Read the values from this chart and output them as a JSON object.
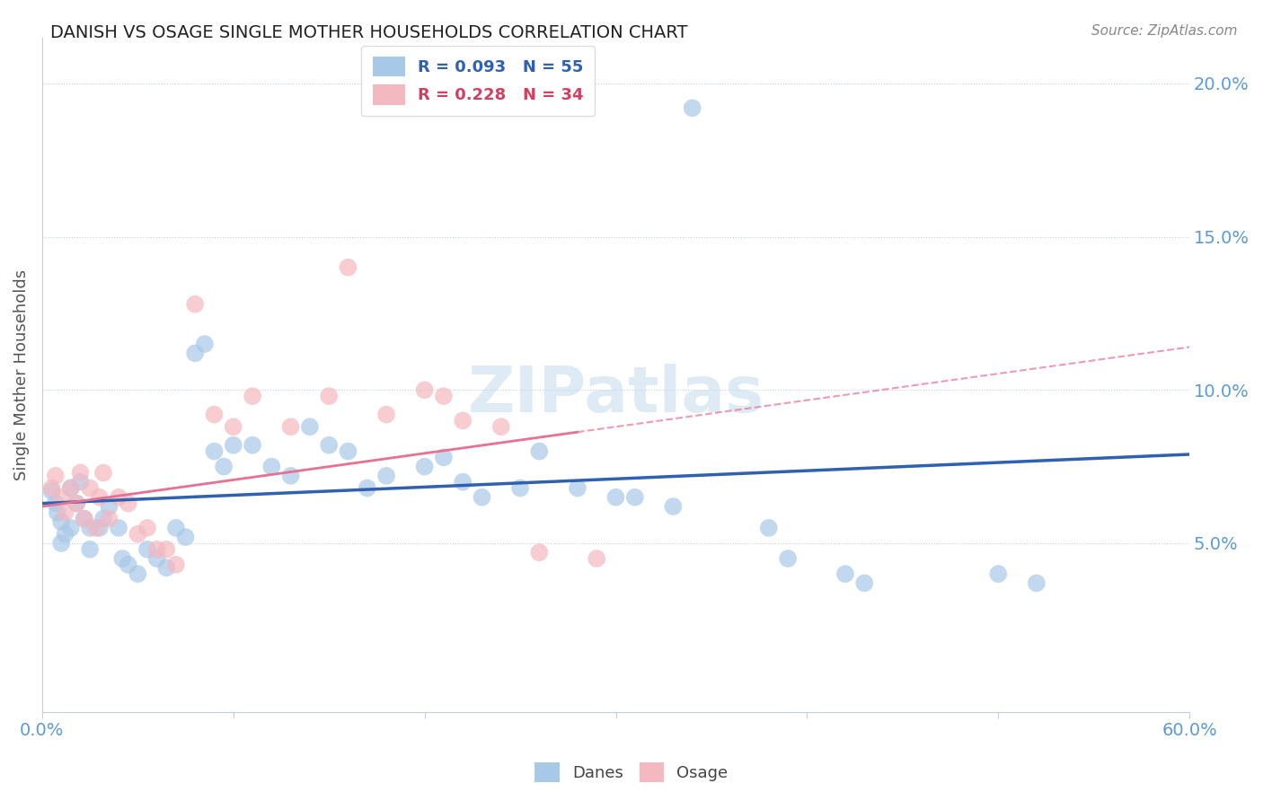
{
  "title": "DANISH VS OSAGE SINGLE MOTHER HOUSEHOLDS CORRELATION CHART",
  "source": "Source: ZipAtlas.com",
  "ylabel": "Single Mother Households",
  "xlim": [
    0.0,
    0.6
  ],
  "ylim": [
    -0.005,
    0.215
  ],
  "ytick_vals": [
    0.05,
    0.1,
    0.15,
    0.2
  ],
  "ytick_labels": [
    "5.0%",
    "10.0%",
    "15.0%",
    "20.0%"
  ],
  "xtick_vals": [
    0.0,
    0.1,
    0.2,
    0.3,
    0.4,
    0.5,
    0.6
  ],
  "xtick_labels": [
    "0.0%",
    "",
    "",
    "",
    "",
    "",
    "60.0%"
  ],
  "danes_R": 0.093,
  "danes_N": 55,
  "osage_R": 0.228,
  "osage_N": 34,
  "danes_color": "#a8c8e8",
  "osage_color": "#f4b8c0",
  "danes_line_color": "#3060b0",
  "osage_line_color": "#e87090",
  "background_color": "#ffffff",
  "watermark": "ZIPatlas",
  "danes_trend_x0": 0.0,
  "danes_trend_y0": 0.063,
  "danes_trend_x1": 0.6,
  "danes_trend_y1": 0.079,
  "osage_trend_x0": 0.0,
  "osage_trend_y0": 0.062,
  "osage_trend_x1": 0.3,
  "osage_trend_y1": 0.088,
  "danes_x": [
    0.005,
    0.007,
    0.008,
    0.01,
    0.01,
    0.012,
    0.015,
    0.015,
    0.018,
    0.02,
    0.022,
    0.025,
    0.025,
    0.03,
    0.032,
    0.035,
    0.04,
    0.042,
    0.045,
    0.05,
    0.055,
    0.06,
    0.065,
    0.07,
    0.075,
    0.08,
    0.085,
    0.09,
    0.095,
    0.1,
    0.11,
    0.12,
    0.13,
    0.14,
    0.15,
    0.16,
    0.17,
    0.18,
    0.2,
    0.21,
    0.22,
    0.23,
    0.25,
    0.26,
    0.28,
    0.3,
    0.31,
    0.33,
    0.38,
    0.39,
    0.42,
    0.43,
    0.5,
    0.52,
    0.34
  ],
  "danes_y": [
    0.067,
    0.063,
    0.06,
    0.057,
    0.05,
    0.053,
    0.068,
    0.055,
    0.063,
    0.07,
    0.058,
    0.055,
    0.048,
    0.055,
    0.058,
    0.062,
    0.055,
    0.045,
    0.043,
    0.04,
    0.048,
    0.045,
    0.042,
    0.055,
    0.052,
    0.112,
    0.115,
    0.08,
    0.075,
    0.082,
    0.082,
    0.075,
    0.072,
    0.088,
    0.082,
    0.08,
    0.068,
    0.072,
    0.075,
    0.078,
    0.07,
    0.065,
    0.068,
    0.08,
    0.068,
    0.065,
    0.065,
    0.062,
    0.055,
    0.045,
    0.04,
    0.037,
    0.04,
    0.037,
    0.192
  ],
  "osage_x": [
    0.005,
    0.007,
    0.01,
    0.012,
    0.015,
    0.018,
    0.02,
    0.022,
    0.025,
    0.028,
    0.03,
    0.032,
    0.035,
    0.04,
    0.045,
    0.05,
    0.055,
    0.06,
    0.065,
    0.07,
    0.08,
    0.09,
    0.1,
    0.11,
    0.13,
    0.15,
    0.16,
    0.18,
    0.2,
    0.21,
    0.22,
    0.24,
    0.26,
    0.29
  ],
  "osage_y": [
    0.068,
    0.072,
    0.065,
    0.06,
    0.068,
    0.063,
    0.073,
    0.058,
    0.068,
    0.055,
    0.065,
    0.073,
    0.058,
    0.065,
    0.063,
    0.053,
    0.055,
    0.048,
    0.048,
    0.043,
    0.128,
    0.092,
    0.088,
    0.098,
    0.088,
    0.098,
    0.14,
    0.092,
    0.1,
    0.098,
    0.09,
    0.088,
    0.047,
    0.045
  ]
}
